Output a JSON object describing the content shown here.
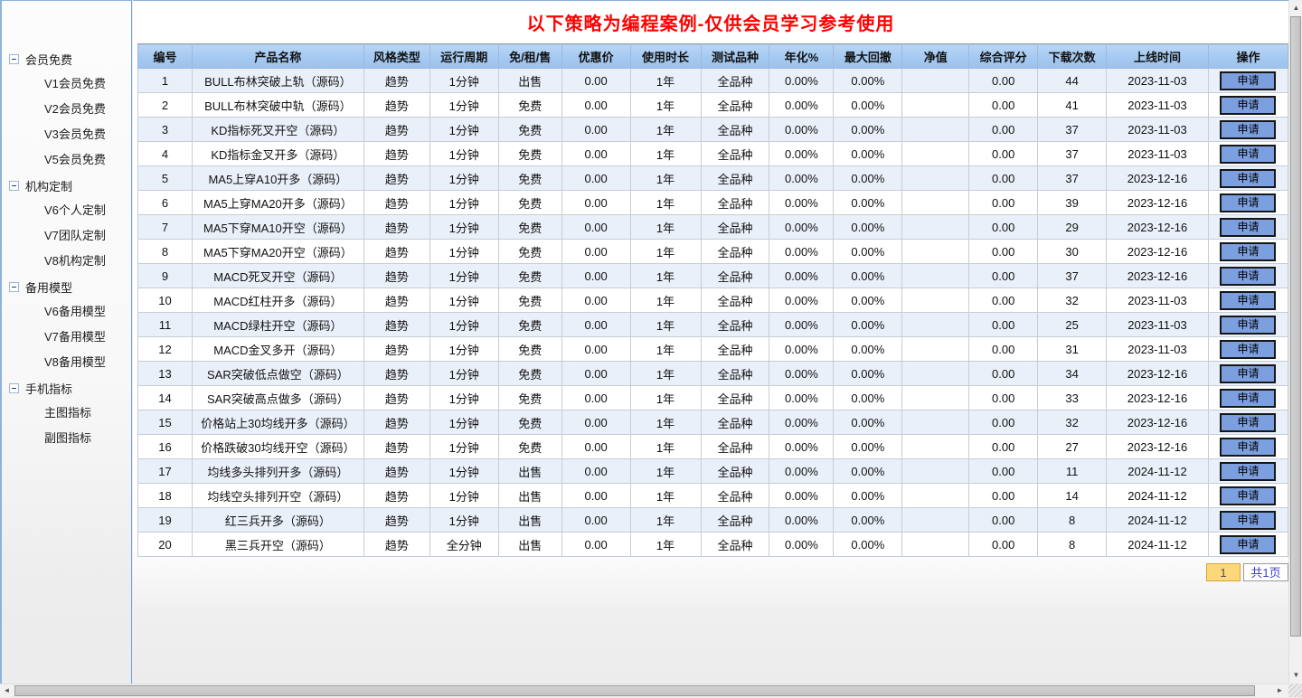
{
  "sidebar": {
    "groups": [
      {
        "label": "会员免费",
        "children": [
          "V1会员免费",
          "V2会员免费",
          "V3会员免费",
          "V5会员免费"
        ]
      },
      {
        "label": "机构定制",
        "children": [
          "V6个人定制",
          "V7团队定制",
          "V8机构定制"
        ]
      },
      {
        "label": "备用模型",
        "children": [
          "V6备用模型",
          "V7备用模型",
          "V8备用模型"
        ]
      },
      {
        "label": "手机指标",
        "children": [
          "主图指标",
          "副图指标"
        ]
      }
    ]
  },
  "header": {
    "title": "以下策略为编程案例-仅供会员学习参考使用",
    "title_color": "#ff0000"
  },
  "table": {
    "columns": [
      "编号",
      "产品名称",
      "风格类型",
      "运行周期",
      "免/租/售",
      "优惠价",
      "使用时长",
      "测试品种",
      "年化%",
      "最大回撤",
      "净值",
      "综合评分",
      "下载次数",
      "上线时间",
      "操作"
    ],
    "action_label": "申请",
    "rows": [
      [
        "1",
        "BULL布林突破上轨（源码）",
        "趋势",
        "1分钟",
        "出售",
        "0.00",
        "1年",
        "全品种",
        "0.00%",
        "0.00%",
        "",
        "0.00",
        "44",
        "2023-11-03"
      ],
      [
        "2",
        "BULL布林突破中轨（源码）",
        "趋势",
        "1分钟",
        "免费",
        "0.00",
        "1年",
        "全品种",
        "0.00%",
        "0.00%",
        "",
        "0.00",
        "41",
        "2023-11-03"
      ],
      [
        "3",
        "KD指标死叉开空（源码）",
        "趋势",
        "1分钟",
        "免费",
        "0.00",
        "1年",
        "全品种",
        "0.00%",
        "0.00%",
        "",
        "0.00",
        "37",
        "2023-11-03"
      ],
      [
        "4",
        "KD指标金叉开多（源码）",
        "趋势",
        "1分钟",
        "免费",
        "0.00",
        "1年",
        "全品种",
        "0.00%",
        "0.00%",
        "",
        "0.00",
        "37",
        "2023-11-03"
      ],
      [
        "5",
        "MA5上穿A10开多（源码）",
        "趋势",
        "1分钟",
        "免费",
        "0.00",
        "1年",
        "全品种",
        "0.00%",
        "0.00%",
        "",
        "0.00",
        "37",
        "2023-12-16"
      ],
      [
        "6",
        "MA5上穿MA20开多（源码）",
        "趋势",
        "1分钟",
        "免费",
        "0.00",
        "1年",
        "全品种",
        "0.00%",
        "0.00%",
        "",
        "0.00",
        "39",
        "2023-12-16"
      ],
      [
        "7",
        "MA5下穿MA10开空（源码）",
        "趋势",
        "1分钟",
        "免费",
        "0.00",
        "1年",
        "全品种",
        "0.00%",
        "0.00%",
        "",
        "0.00",
        "29",
        "2023-12-16"
      ],
      [
        "8",
        "MA5下穿MA20开空（源码）",
        "趋势",
        "1分钟",
        "免费",
        "0.00",
        "1年",
        "全品种",
        "0.00%",
        "0.00%",
        "",
        "0.00",
        "30",
        "2023-12-16"
      ],
      [
        "9",
        "MACD死叉开空（源码）",
        "趋势",
        "1分钟",
        "免费",
        "0.00",
        "1年",
        "全品种",
        "0.00%",
        "0.00%",
        "",
        "0.00",
        "37",
        "2023-12-16"
      ],
      [
        "10",
        "MACD红柱开多（源码）",
        "趋势",
        "1分钟",
        "免费",
        "0.00",
        "1年",
        "全品种",
        "0.00%",
        "0.00%",
        "",
        "0.00",
        "32",
        "2023-11-03"
      ],
      [
        "11",
        "MACD绿柱开空（源码）",
        "趋势",
        "1分钟",
        "免费",
        "0.00",
        "1年",
        "全品种",
        "0.00%",
        "0.00%",
        "",
        "0.00",
        "25",
        "2023-11-03"
      ],
      [
        "12",
        "MACD金叉多开（源码）",
        "趋势",
        "1分钟",
        "免费",
        "0.00",
        "1年",
        "全品种",
        "0.00%",
        "0.00%",
        "",
        "0.00",
        "31",
        "2023-11-03"
      ],
      [
        "13",
        "SAR突破低点做空（源码）",
        "趋势",
        "1分钟",
        "免费",
        "0.00",
        "1年",
        "全品种",
        "0.00%",
        "0.00%",
        "",
        "0.00",
        "34",
        "2023-12-16"
      ],
      [
        "14",
        "SAR突破高点做多（源码）",
        "趋势",
        "1分钟",
        "免费",
        "0.00",
        "1年",
        "全品种",
        "0.00%",
        "0.00%",
        "",
        "0.00",
        "33",
        "2023-12-16"
      ],
      [
        "15",
        "价格站上30均线开多（源码）",
        "趋势",
        "1分钟",
        "免费",
        "0.00",
        "1年",
        "全品种",
        "0.00%",
        "0.00%",
        "",
        "0.00",
        "32",
        "2023-12-16"
      ],
      [
        "16",
        "价格跌破30均线开空（源码）",
        "趋势",
        "1分钟",
        "免费",
        "0.00",
        "1年",
        "全品种",
        "0.00%",
        "0.00%",
        "",
        "0.00",
        "27",
        "2023-12-16"
      ],
      [
        "17",
        "均线多头排列开多（源码）",
        "趋势",
        "1分钟",
        "出售",
        "0.00",
        "1年",
        "全品种",
        "0.00%",
        "0.00%",
        "",
        "0.00",
        "11",
        "2024-11-12"
      ],
      [
        "18",
        "均线空头排列开空（源码）",
        "趋势",
        "1分钟",
        "出售",
        "0.00",
        "1年",
        "全品种",
        "0.00%",
        "0.00%",
        "",
        "0.00",
        "14",
        "2024-11-12"
      ],
      [
        "19",
        "红三兵开多（源码）",
        "趋势",
        "1分钟",
        "出售",
        "0.00",
        "1年",
        "全品种",
        "0.00%",
        "0.00%",
        "",
        "0.00",
        "8",
        "2024-11-12"
      ],
      [
        "20",
        "黑三兵开空（源码）",
        "趋势",
        "全分钟",
        "出售",
        "0.00",
        "1年",
        "全品种",
        "0.00%",
        "0.00%",
        "",
        "0.00",
        "8",
        "2024-11-12"
      ]
    ]
  },
  "pagination": {
    "current_page": "1",
    "total_label": "共1页"
  },
  "icons": {
    "scroll_up": "▲",
    "scroll_down": "▼",
    "scroll_left": "◄",
    "scroll_right": "►"
  },
  "colors": {
    "accent_border_blue": "#6f9fd8",
    "table_header_blue": "#a3c8f0",
    "row_alt_blue": "#eaf0fa",
    "button_blue": "#7c9fe0",
    "title_red": "#ff0000",
    "page_current_bg": "#fcd879",
    "page_current_border": "#d9a23a",
    "page_total_text": "#3a3ad1"
  }
}
